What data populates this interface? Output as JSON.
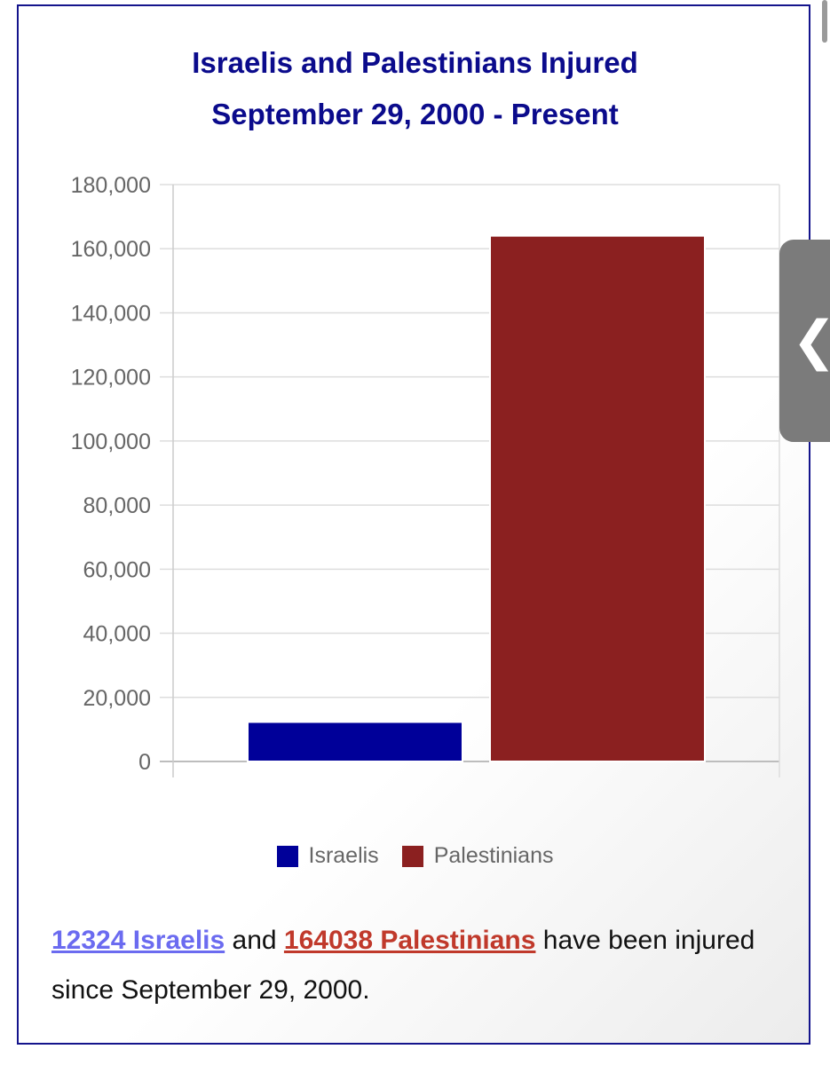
{
  "chart_data": {
    "type": "bar",
    "title": "Israelis and Palestinians Injured",
    "subtitle": "September 29, 2000 - Present",
    "categories": [
      "Israelis",
      "Palestinians"
    ],
    "values": [
      12324,
      164038
    ],
    "colors": [
      "#000099",
      "#8b2020"
    ],
    "ylim": [
      0,
      180000
    ],
    "yticks": [
      0,
      20000,
      40000,
      60000,
      80000,
      100000,
      120000,
      140000,
      160000,
      180000
    ],
    "ytick_labels": [
      "0",
      "20,000",
      "40,000",
      "60,000",
      "80,000",
      "100,000",
      "120,000",
      "140,000",
      "160,000",
      "180,000"
    ],
    "grid": true,
    "legend_placement": "bottom-center",
    "legend": [
      {
        "name": "Israelis",
        "color": "#000099"
      },
      {
        "name": "Palestinians",
        "color": "#8b2020"
      }
    ]
  },
  "caption": {
    "israelis_link": "12324 Israelis",
    "and_text": " and ",
    "palestinians_link": "164038 Palestinians",
    "rest": " have been injured since September 29, 2000."
  },
  "side_tab": {
    "icon": "chevron-left-icon",
    "glyph": "❮"
  },
  "colors": {
    "title": "#0b0b8c",
    "border": "#14148c",
    "israelis_link": "#6b6bf0",
    "palestinians_link": "#c0392b"
  }
}
